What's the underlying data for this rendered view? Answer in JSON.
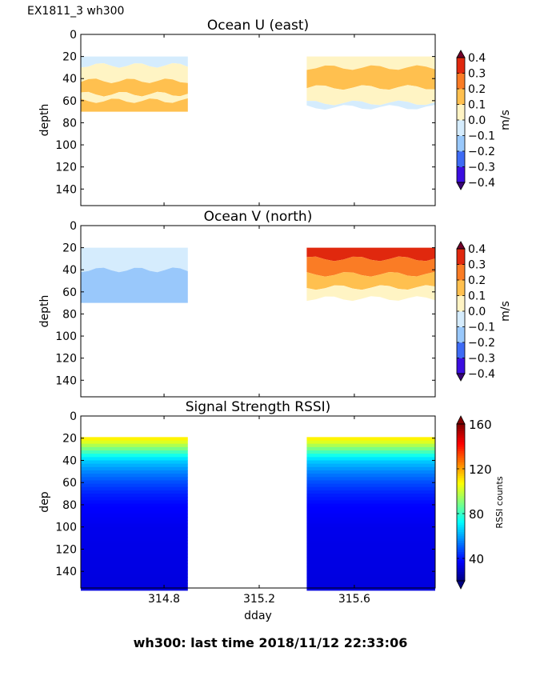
{
  "figure": {
    "suptitle": "EX1811_3 wh300",
    "footer": "wh300: last time 2018/11/12 22:33:06"
  },
  "chart_data": [
    {
      "type": "heatmap",
      "title": "Ocean U (east)",
      "xlabel": "",
      "ylabel": "depth",
      "xlim": [
        314.45,
        315.94
      ],
      "ylim": [
        155,
        0
      ],
      "xticks": [
        314.8,
        315.2,
        315.6
      ],
      "xtick_labels": [
        "",
        "",
        ""
      ],
      "yticks": [
        0,
        20,
        40,
        60,
        80,
        100,
        120,
        140
      ],
      "ytick_labels": [
        "0",
        "20",
        "40",
        "60",
        "80",
        "100",
        "120",
        "140"
      ],
      "data_segments": [
        {
          "x_start": 314.45,
          "x_end": 314.9,
          "depth_start": 20,
          "depth_end": 70
        },
        {
          "x_start": 315.4,
          "x_end": 315.94,
          "depth_start": 20,
          "depth_end": 70
        }
      ],
      "bands": [
        {
          "segment": 0,
          "depth_start": 20,
          "depth_end": 28,
          "value": -0.05
        },
        {
          "segment": 0,
          "depth_start": 28,
          "depth_end": 42,
          "value": 0.05
        },
        {
          "segment": 0,
          "depth_start": 42,
          "depth_end": 54,
          "value": 0.15
        },
        {
          "segment": 0,
          "depth_start": 54,
          "depth_end": 60,
          "value": 0.05
        },
        {
          "segment": 0,
          "depth_start": 60,
          "depth_end": 70,
          "value": 0.15
        },
        {
          "segment": 1,
          "depth_start": 20,
          "depth_end": 30,
          "value": 0.05
        },
        {
          "segment": 1,
          "depth_start": 30,
          "depth_end": 48,
          "value": 0.15
        },
        {
          "segment": 1,
          "depth_start": 48,
          "depth_end": 62,
          "value": 0.05
        },
        {
          "segment": 1,
          "depth_start": 62,
          "depth_end": 66,
          "value": -0.05
        }
      ],
      "colorbar": {
        "label": "m/s",
        "levels": [
          -0.4,
          -0.3,
          -0.2,
          -0.1,
          0.0,
          0.1,
          0.2,
          0.3,
          0.4
        ],
        "tick_labels": [
          "−0.4",
          "−0.3",
          "−0.2",
          "−0.1",
          "0.0",
          "0.1",
          "0.2",
          "0.3",
          "0.4"
        ],
        "colors": [
          "#3b0ee0",
          "#3e6bf5",
          "#99c8fb",
          "#d5ecfd",
          "#fff4c4",
          "#ffc04f",
          "#fa7c25",
          "#e0280e"
        ],
        "extend_colors": [
          "#3a0577",
          "#72002a"
        ]
      }
    },
    {
      "type": "heatmap",
      "title": "Ocean V (north)",
      "xlabel": "",
      "ylabel": "depth",
      "xlim": [
        314.45,
        315.94
      ],
      "ylim": [
        155,
        0
      ],
      "xticks": [
        314.8,
        315.2,
        315.6
      ],
      "xtick_labels": [
        "",
        "",
        ""
      ],
      "yticks": [
        0,
        20,
        40,
        60,
        80,
        100,
        120,
        140
      ],
      "ytick_labels": [
        "0",
        "20",
        "40",
        "60",
        "80",
        "100",
        "120",
        "140"
      ],
      "data_segments": [
        {
          "x_start": 314.45,
          "x_end": 314.9,
          "depth_start": 20,
          "depth_end": 70
        },
        {
          "x_start": 315.4,
          "x_end": 315.94,
          "depth_start": 20,
          "depth_end": 70
        }
      ],
      "bands": [
        {
          "segment": 0,
          "depth_start": 20,
          "depth_end": 40,
          "value": -0.05
        },
        {
          "segment": 0,
          "depth_start": 40,
          "depth_end": 70,
          "value": -0.15
        },
        {
          "segment": 1,
          "depth_start": 20,
          "depth_end": 30,
          "value": 0.35
        },
        {
          "segment": 1,
          "depth_start": 30,
          "depth_end": 44,
          "value": 0.25
        },
        {
          "segment": 1,
          "depth_start": 44,
          "depth_end": 56,
          "value": 0.15
        },
        {
          "segment": 1,
          "depth_start": 56,
          "depth_end": 66,
          "value": 0.05
        }
      ],
      "colorbar": {
        "label": "m/s",
        "levels": [
          -0.4,
          -0.3,
          -0.2,
          -0.1,
          0.0,
          0.1,
          0.2,
          0.3,
          0.4
        ],
        "tick_labels": [
          "−0.4",
          "−0.3",
          "−0.2",
          "−0.1",
          "0.0",
          "0.1",
          "0.2",
          "0.3",
          "0.4"
        ],
        "colors": [
          "#3b0ee0",
          "#3e6bf5",
          "#99c8fb",
          "#d5ecfd",
          "#fff4c4",
          "#ffc04f",
          "#fa7c25",
          "#e0280e"
        ],
        "extend_colors": [
          "#3a0577",
          "#72002a"
        ]
      }
    },
    {
      "type": "heatmap",
      "title": "Signal Strength RSSI)",
      "xlabel": "dday",
      "ylabel": "dep",
      "xlim": [
        314.45,
        315.94
      ],
      "ylim": [
        155,
        0
      ],
      "xticks": [
        314.8,
        315.2,
        315.6
      ],
      "xtick_labels": [
        "314.8",
        "315.2",
        "315.6"
      ],
      "yticks": [
        0,
        20,
        40,
        60,
        80,
        100,
        120,
        140
      ],
      "ytick_labels": [
        "0",
        "20",
        "40",
        "60",
        "80",
        "100",
        "120",
        "140"
      ],
      "data_segments": [
        {
          "x_start": 314.45,
          "x_end": 314.9,
          "depth_start": 19,
          "depth_end": 155
        },
        {
          "x_start": 315.4,
          "x_end": 315.94,
          "depth_start": 19,
          "depth_end": 155
        }
      ],
      "depth_profile": {
        "depth": [
          19,
          25,
          30,
          35,
          40,
          50,
          60,
          70,
          80,
          100,
          155
        ],
        "rssi": [
          112,
          100,
          88,
          76,
          66,
          56,
          48,
          42,
          38,
          35,
          33
        ]
      },
      "colorbar": {
        "label": "RSSI counts",
        "range": [
          20,
          160
        ],
        "ticks": [
          40,
          80,
          120,
          160
        ],
        "tick_labels": [
          "40",
          "80",
          "120",
          "160"
        ],
        "colormap": "jet"
      }
    }
  ]
}
